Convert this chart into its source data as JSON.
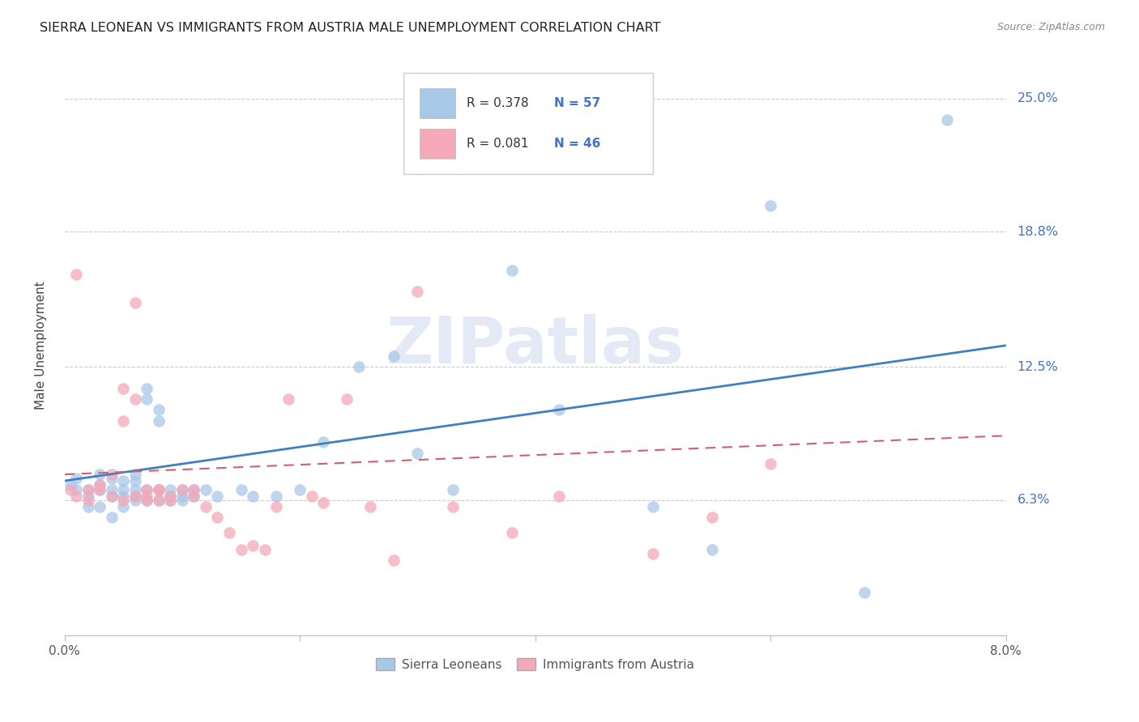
{
  "title": "SIERRA LEONEAN VS IMMIGRANTS FROM AUSTRIA MALE UNEMPLOYMENT CORRELATION CHART",
  "source": "Source: ZipAtlas.com",
  "ylabel": "Male Unemployment",
  "ytick_labels": [
    "6.3%",
    "12.5%",
    "18.8%",
    "25.0%"
  ],
  "ytick_values": [
    0.063,
    0.125,
    0.188,
    0.25
  ],
  "xlim": [
    0.0,
    0.08
  ],
  "ylim": [
    0.0,
    0.27
  ],
  "legend_blue_R": "R = 0.378",
  "legend_blue_N": "N = 57",
  "legend_pink_R": "R = 0.081",
  "legend_pink_N": "N = 46",
  "legend_label_blue": "Sierra Leoneans",
  "legend_label_pink": "Immigrants from Austria",
  "blue_color": "#a8c8e8",
  "pink_color": "#f4a8b8",
  "blue_line_color": "#4080c0",
  "pink_line_color": "#d06070",
  "blue_R": 0.378,
  "blue_N": 57,
  "pink_R": 0.081,
  "pink_N": 46,
  "watermark": "ZIPatlas",
  "blue_scatter_x": [
    0.0005,
    0.001,
    0.001,
    0.002,
    0.002,
    0.002,
    0.003,
    0.003,
    0.003,
    0.003,
    0.004,
    0.004,
    0.004,
    0.004,
    0.005,
    0.005,
    0.005,
    0.005,
    0.006,
    0.006,
    0.006,
    0.006,
    0.006,
    0.007,
    0.007,
    0.007,
    0.007,
    0.008,
    0.008,
    0.008,
    0.008,
    0.009,
    0.009,
    0.009,
    0.01,
    0.01,
    0.01,
    0.011,
    0.011,
    0.012,
    0.013,
    0.015,
    0.016,
    0.018,
    0.02,
    0.022,
    0.025,
    0.028,
    0.03,
    0.033,
    0.038,
    0.042,
    0.05,
    0.055,
    0.06,
    0.068,
    0.075
  ],
  "blue_scatter_y": [
    0.07,
    0.068,
    0.073,
    0.068,
    0.065,
    0.06,
    0.075,
    0.07,
    0.068,
    0.06,
    0.073,
    0.068,
    0.065,
    0.055,
    0.072,
    0.068,
    0.065,
    0.06,
    0.075,
    0.072,
    0.068,
    0.065,
    0.063,
    0.115,
    0.11,
    0.068,
    0.063,
    0.105,
    0.1,
    0.068,
    0.063,
    0.068,
    0.065,
    0.063,
    0.068,
    0.065,
    0.063,
    0.068,
    0.065,
    0.068,
    0.065,
    0.068,
    0.065,
    0.065,
    0.068,
    0.09,
    0.125,
    0.13,
    0.085,
    0.068,
    0.17,
    0.105,
    0.06,
    0.04,
    0.2,
    0.02,
    0.24
  ],
  "pink_scatter_x": [
    0.0005,
    0.001,
    0.001,
    0.002,
    0.002,
    0.003,
    0.003,
    0.004,
    0.004,
    0.005,
    0.005,
    0.005,
    0.006,
    0.006,
    0.006,
    0.007,
    0.007,
    0.007,
    0.008,
    0.008,
    0.008,
    0.009,
    0.009,
    0.01,
    0.011,
    0.011,
    0.012,
    0.013,
    0.014,
    0.015,
    0.016,
    0.017,
    0.018,
    0.019,
    0.021,
    0.022,
    0.024,
    0.026,
    0.028,
    0.03,
    0.033,
    0.038,
    0.042,
    0.05,
    0.055,
    0.06
  ],
  "pink_scatter_y": [
    0.068,
    0.168,
    0.065,
    0.068,
    0.063,
    0.07,
    0.068,
    0.075,
    0.065,
    0.115,
    0.1,
    0.063,
    0.155,
    0.11,
    0.065,
    0.068,
    0.065,
    0.063,
    0.068,
    0.068,
    0.063,
    0.065,
    0.063,
    0.068,
    0.068,
    0.065,
    0.06,
    0.055,
    0.048,
    0.04,
    0.042,
    0.04,
    0.06,
    0.11,
    0.065,
    0.062,
    0.11,
    0.06,
    0.035,
    0.16,
    0.06,
    0.048,
    0.065,
    0.038,
    0.055,
    0.08
  ],
  "blue_line_x0": 0.0,
  "blue_line_y0": 0.072,
  "blue_line_x1": 0.08,
  "blue_line_y1": 0.135,
  "pink_line_x0": 0.0,
  "pink_line_y0": 0.075,
  "pink_line_x1": 0.08,
  "pink_line_y1": 0.093
}
